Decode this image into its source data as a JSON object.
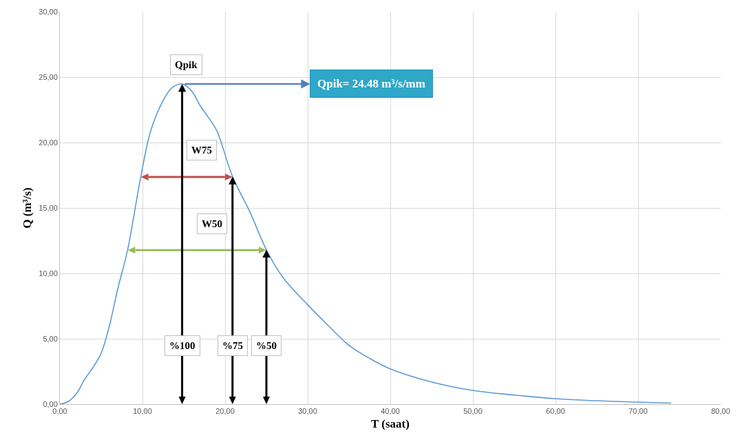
{
  "chart_data": {
    "type": "line",
    "xlabel": "T (saat)",
    "ylabel": "Q (m³/s)",
    "x": [
      0,
      1,
      2,
      3,
      4,
      5,
      6,
      7,
      8.2,
      9.8,
      11,
      12.5,
      13.6,
      14.8,
      16,
      17,
      18,
      19,
      20.9,
      23,
      25,
      27,
      30,
      32.5,
      35,
      37.5,
      40,
      45,
      50,
      55,
      60,
      65,
      70,
      74
    ],
    "values": [
      0,
      0.2,
      0.8,
      1.9,
      2.8,
      3.9,
      6.0,
      8.8,
      11.8,
      17.4,
      20.9,
      23.2,
      24.2,
      24.48,
      23.9,
      22.8,
      21.9,
      20.9,
      17.4,
      14.7,
      11.8,
      9.7,
      7.6,
      6.0,
      4.5,
      3.5,
      2.7,
      1.7,
      1.05,
      0.7,
      0.42,
      0.26,
      0.16,
      0.08
    ],
    "color": "#5b9bd5",
    "marker": "none",
    "line_style": "solid",
    "grid": true,
    "xlim": [
      0,
      80
    ],
    "xticks": [
      {
        "value": 0,
        "label": "0,00"
      },
      {
        "value": 10,
        "label": "10,00"
      },
      {
        "value": 20,
        "label": "20,00"
      },
      {
        "value": 30,
        "label": "30,00"
      },
      {
        "value": 40,
        "label": "40,00"
      },
      {
        "value": 50,
        "label": "50,00"
      },
      {
        "value": 60,
        "label": "60,00"
      },
      {
        "value": 70,
        "label": "70,00"
      },
      {
        "value": 80,
        "label": "80,00"
      }
    ],
    "ylim": [
      0,
      30
    ],
    "yticks": [
      {
        "value": 0,
        "label": "0,00"
      },
      {
        "value": 5,
        "label": "5,00"
      },
      {
        "value": 10,
        "label": "10,00"
      },
      {
        "value": 15,
        "label": "15,00"
      },
      {
        "value": 20,
        "label": "20,00"
      },
      {
        "value": 25,
        "label": "25,00"
      },
      {
        "value": 30,
        "label": "30,00"
      }
    ],
    "annotations": [
      {
        "text": "Qpik",
        "x": 14.8,
        "y": 24.48
      },
      {
        "text": "Qpik= 24.48 m³/s/mm",
        "x": 14.8,
        "y": 24.48
      },
      "W75",
      "W50",
      {
        "text": "%100",
        "x": 14.8,
        "y": 24.48
      },
      {
        "text": "%75",
        "x": 20.9,
        "y": 17.4
      },
      {
        "text": "%50",
        "x": 25,
        "y": 11.8
      }
    ]
  }
}
